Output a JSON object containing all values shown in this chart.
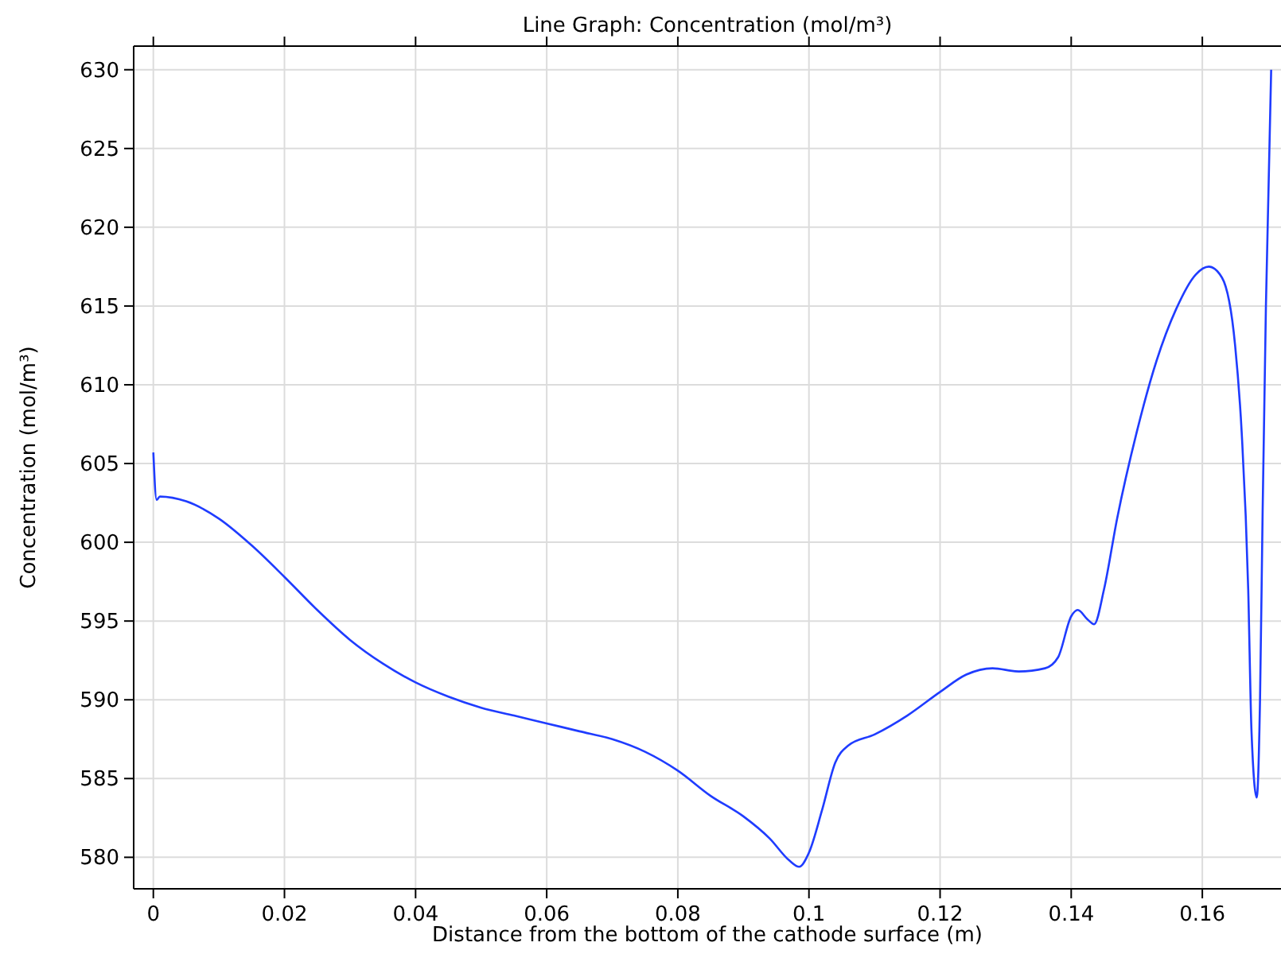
{
  "chart_data": {
    "type": "line",
    "title": "Line Graph: Concentration (mol/m³)",
    "xlabel": "Distance from the bottom of the cathode surface (m)",
    "ylabel": "Concentration (mol/m³)",
    "xlim": [
      -0.003,
      0.172
    ],
    "ylim": [
      578,
      631.5
    ],
    "xticks": [
      0,
      0.02,
      0.04,
      0.06,
      0.08,
      0.1,
      0.12,
      0.14,
      0.16
    ],
    "yticks": [
      580,
      585,
      590,
      595,
      600,
      605,
      610,
      615,
      620,
      625,
      630
    ],
    "grid": true,
    "line_style": "solid",
    "series": [
      {
        "color": "#1f3cff",
        "x": [
          0,
          0.0005,
          0.001,
          0.005,
          0.01,
          0.015,
          0.02,
          0.025,
          0.03,
          0.035,
          0.04,
          0.045,
          0.05,
          0.055,
          0.06,
          0.065,
          0.07,
          0.075,
          0.08,
          0.085,
          0.09,
          0.094,
          0.097,
          0.0985,
          0.1,
          0.102,
          0.104,
          0.106,
          0.11,
          0.115,
          0.12,
          0.124,
          0.128,
          0.132,
          0.136,
          0.138,
          0.14,
          0.141,
          0.1425,
          0.1435,
          0.145,
          0.147,
          0.15,
          0.153,
          0.156,
          0.159,
          0.161,
          0.163,
          0.165,
          0.166,
          0.167,
          0.1675,
          0.1683,
          0.1688,
          0.1692,
          0.1697,
          0.1705
        ],
        "values": [
          605.7,
          602.7,
          602.9,
          602.6,
          601.5,
          599.8,
          597.8,
          595.7,
          593.8,
          592.3,
          591.1,
          590.2,
          589.5,
          589,
          588.5,
          588,
          587.5,
          586.7,
          585.5,
          583.9,
          582.6,
          581.2,
          579.8,
          579.4,
          580.3,
          583,
          586,
          587.1,
          587.8,
          589,
          590.5,
          591.6,
          592,
          591.8,
          592,
          592.7,
          595.3,
          595.7,
          595.1,
          594.8,
          597,
          601.5,
          607,
          611.5,
          614.8,
          617,
          617.5,
          616.8,
          612.5,
          607,
          597,
          588,
          583.8,
          590,
          602,
          615,
          630
        ]
      }
    ]
  }
}
